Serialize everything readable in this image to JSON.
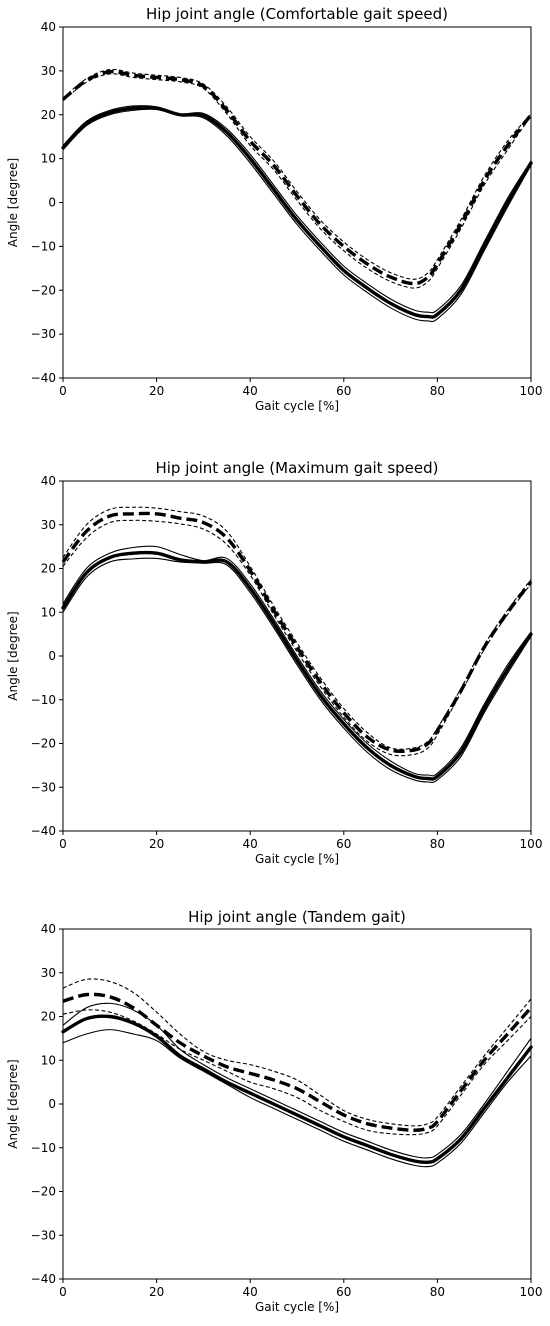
{
  "figure": {
    "colors": {
      "line": "#000000",
      "background": "#ffffff"
    }
  },
  "chart_data": [
    {
      "type": "line",
      "title": "Hip joint angle (Comfortable gait speed)",
      "xlabel": "Gait cycle [%]",
      "ylabel": "Angle [degree]",
      "xlim": [
        0,
        100
      ],
      "ylim": [
        -40,
        40
      ],
      "xticks": [
        0,
        20,
        40,
        60,
        80,
        100
      ],
      "yticks": [
        -40,
        -30,
        -20,
        -10,
        0,
        10,
        20,
        30,
        40
      ],
      "x": [
        0,
        5,
        10,
        15,
        20,
        25,
        30,
        35,
        40,
        45,
        50,
        55,
        60,
        65,
        70,
        75,
        78,
        80,
        85,
        90,
        95,
        100
      ],
      "series": [
        {
          "style": "solid",
          "width": "mean",
          "values": [
            12.5,
            18,
            20.5,
            21.5,
            21.5,
            20,
            19.8,
            16,
            10,
            3,
            -4,
            -10,
            -15.5,
            -19.5,
            -23,
            -25.5,
            -26,
            -25.5,
            -20,
            -10,
            0,
            9
          ]
        },
        {
          "style": "solid",
          "width": "upper",
          "values": [
            13,
            18.5,
            21,
            22,
            21.8,
            20.2,
            20.3,
            16.8,
            11,
            4,
            -3,
            -9,
            -14.5,
            -18.5,
            -22,
            -24.5,
            -25,
            -24.5,
            -19,
            -9,
            1,
            9.5
          ]
        },
        {
          "style": "solid",
          "width": "lower",
          "values": [
            12,
            17.5,
            20,
            21,
            21.2,
            19.8,
            19.3,
            15.2,
            9,
            2,
            -5,
            -11,
            -16.5,
            -20.5,
            -24,
            -26.5,
            -27,
            -26.5,
            -21,
            -11,
            -1,
            8.5
          ]
        },
        {
          "style": "dashed",
          "width": "mean",
          "values": [
            23.5,
            27.8,
            29.8,
            29,
            28.5,
            28,
            26.5,
            21,
            14,
            8.5,
            1.5,
            -5,
            -10,
            -14,
            -17,
            -18.5,
            -17,
            -14,
            -5,
            5,
            13,
            20
          ]
        },
        {
          "style": "dashed",
          "width": "upper",
          "values": [
            23.8,
            28.2,
            30.3,
            29.5,
            29,
            28.5,
            27,
            21.8,
            15,
            9.5,
            2.5,
            -4,
            -9,
            -13,
            -16,
            -17.5,
            -16,
            -13,
            -4,
            6,
            14,
            20.2
          ]
        },
        {
          "style": "dashed",
          "width": "lower",
          "values": [
            23.2,
            27.4,
            29.3,
            28.5,
            28,
            27.5,
            26,
            20.2,
            13,
            7.5,
            0.5,
            -6,
            -11,
            -15,
            -18,
            -19.5,
            -18,
            -15,
            -6,
            4,
            12,
            19.8
          ]
        }
      ]
    },
    {
      "type": "line",
      "title": "Hip joint angle (Maximum gait speed)",
      "xlabel": "Gait cycle [%]",
      "ylabel": "Angle [degree]",
      "xlim": [
        0,
        100
      ],
      "ylim": [
        -40,
        40
      ],
      "xticks": [
        0,
        20,
        40,
        60,
        80,
        100
      ],
      "yticks": [
        -40,
        -30,
        -20,
        -10,
        0,
        10,
        20,
        30,
        40
      ],
      "x": [
        0,
        5,
        10,
        15,
        20,
        25,
        30,
        35,
        40,
        45,
        50,
        55,
        60,
        65,
        70,
        75,
        78,
        80,
        85,
        90,
        95,
        100
      ],
      "series": [
        {
          "style": "solid",
          "width": "mean",
          "values": [
            11,
            19,
            22.5,
            23.5,
            23.5,
            22,
            21.5,
            21.5,
            15.5,
            7.5,
            -1,
            -9,
            -15.5,
            -21,
            -25,
            -27.5,
            -28,
            -27.5,
            -22,
            -12,
            -3,
            5
          ]
        },
        {
          "style": "solid",
          "width": "upper",
          "values": [
            12,
            20,
            23.5,
            24.8,
            25,
            23.2,
            21.8,
            22.3,
            16.5,
            8.5,
            0,
            -8,
            -14.5,
            -20,
            -24,
            -26.8,
            -27.2,
            -26.8,
            -21,
            -11,
            -2,
            5.5
          ]
        },
        {
          "style": "solid",
          "width": "lower",
          "values": [
            10,
            18,
            21.5,
            22.2,
            22.3,
            21.5,
            21.2,
            20.8,
            14.5,
            6.5,
            -2,
            -10,
            -16.5,
            -22,
            -26,
            -28.3,
            -28.8,
            -28.3,
            -23,
            -13,
            -4,
            4.5
          ]
        },
        {
          "style": "dashed",
          "width": "mean",
          "values": [
            21.5,
            28.5,
            32,
            32.5,
            32.5,
            31.5,
            30.5,
            27,
            19.5,
            10.5,
            2,
            -6,
            -13,
            -18.5,
            -21.5,
            -21.5,
            -20,
            -17,
            -8,
            2,
            10,
            17
          ]
        },
        {
          "style": "dashed",
          "width": "upper",
          "values": [
            22.5,
            30,
            33.5,
            34,
            33.8,
            33,
            32,
            28.5,
            20.5,
            11.5,
            3,
            -5,
            -12,
            -17.5,
            -21,
            -21,
            -19.5,
            -16.5,
            -7.5,
            2.5,
            10.5,
            17.5
          ]
        },
        {
          "style": "dashed",
          "width": "lower",
          "values": [
            20.5,
            27,
            30.5,
            31,
            30.8,
            30.2,
            29,
            25.5,
            18.5,
            9.5,
            1,
            -7,
            -14,
            -19.5,
            -22.5,
            -22.5,
            -21,
            -18,
            -8.5,
            1.5,
            9.5,
            16.5
          ]
        }
      ]
    },
    {
      "type": "line",
      "title": "Hip joint angle (Tandem gait)",
      "xlabel": "Gait cycle [%]",
      "ylabel": "Angle [degree]",
      "xlim": [
        0,
        100
      ],
      "ylim": [
        -40,
        40
      ],
      "xticks": [
        0,
        20,
        40,
        60,
        80,
        100
      ],
      "yticks": [
        -40,
        -30,
        -20,
        -10,
        0,
        10,
        20,
        30,
        40
      ],
      "x": [
        0,
        5,
        10,
        15,
        20,
        25,
        30,
        35,
        40,
        45,
        50,
        55,
        60,
        65,
        70,
        75,
        78,
        80,
        85,
        90,
        95,
        100
      ],
      "series": [
        {
          "style": "solid",
          "width": "mean",
          "values": [
            16.5,
            19.5,
            20,
            18.5,
            15.5,
            11,
            8,
            5,
            2.5,
            0,
            -2.5,
            -5,
            -7.5,
            -9.5,
            -11.5,
            -13,
            -13.3,
            -12.5,
            -8,
            -1,
            6,
            13
          ]
        },
        {
          "style": "solid",
          "width": "upper",
          "values": [
            18,
            22,
            23,
            21.5,
            18,
            12.5,
            9,
            6,
            3.5,
            1,
            -1.5,
            -4,
            -6.5,
            -8.5,
            -10.5,
            -12,
            -12.3,
            -11.5,
            -7,
            0,
            7.5,
            15
          ]
        },
        {
          "style": "solid",
          "width": "lower",
          "values": [
            14,
            16,
            17,
            16,
            14.5,
            10.5,
            7.5,
            4.5,
            1.5,
            -1,
            -3.5,
            -6,
            -8.5,
            -10.5,
            -12.5,
            -14,
            -14.3,
            -13.5,
            -9,
            -2,
            5,
            11
          ]
        },
        {
          "style": "dashed",
          "width": "mean",
          "values": [
            23.5,
            25,
            24.5,
            22,
            18,
            14,
            11,
            8.5,
            7,
            5.5,
            3.5,
            0.5,
            -2.5,
            -4.5,
            -5.5,
            -6,
            -5.5,
            -4,
            3,
            10,
            16,
            22
          ]
        },
        {
          "style": "dashed",
          "width": "upper",
          "values": [
            26.5,
            28.5,
            28,
            25.5,
            21,
            16,
            12,
            10,
            9,
            7.5,
            5.5,
            2,
            -1.5,
            -3.5,
            -4.5,
            -5,
            -4.5,
            -3,
            4,
            11,
            17.5,
            24
          ]
        },
        {
          "style": "dashed",
          "width": "lower",
          "values": [
            20.5,
            21.5,
            21,
            19,
            16,
            12.5,
            10,
            7.5,
            5,
            3.5,
            1.5,
            -1.5,
            -4,
            -6,
            -6.8,
            -7,
            -6.5,
            -5,
            2,
            9,
            14.5,
            20
          ]
        }
      ]
    }
  ]
}
